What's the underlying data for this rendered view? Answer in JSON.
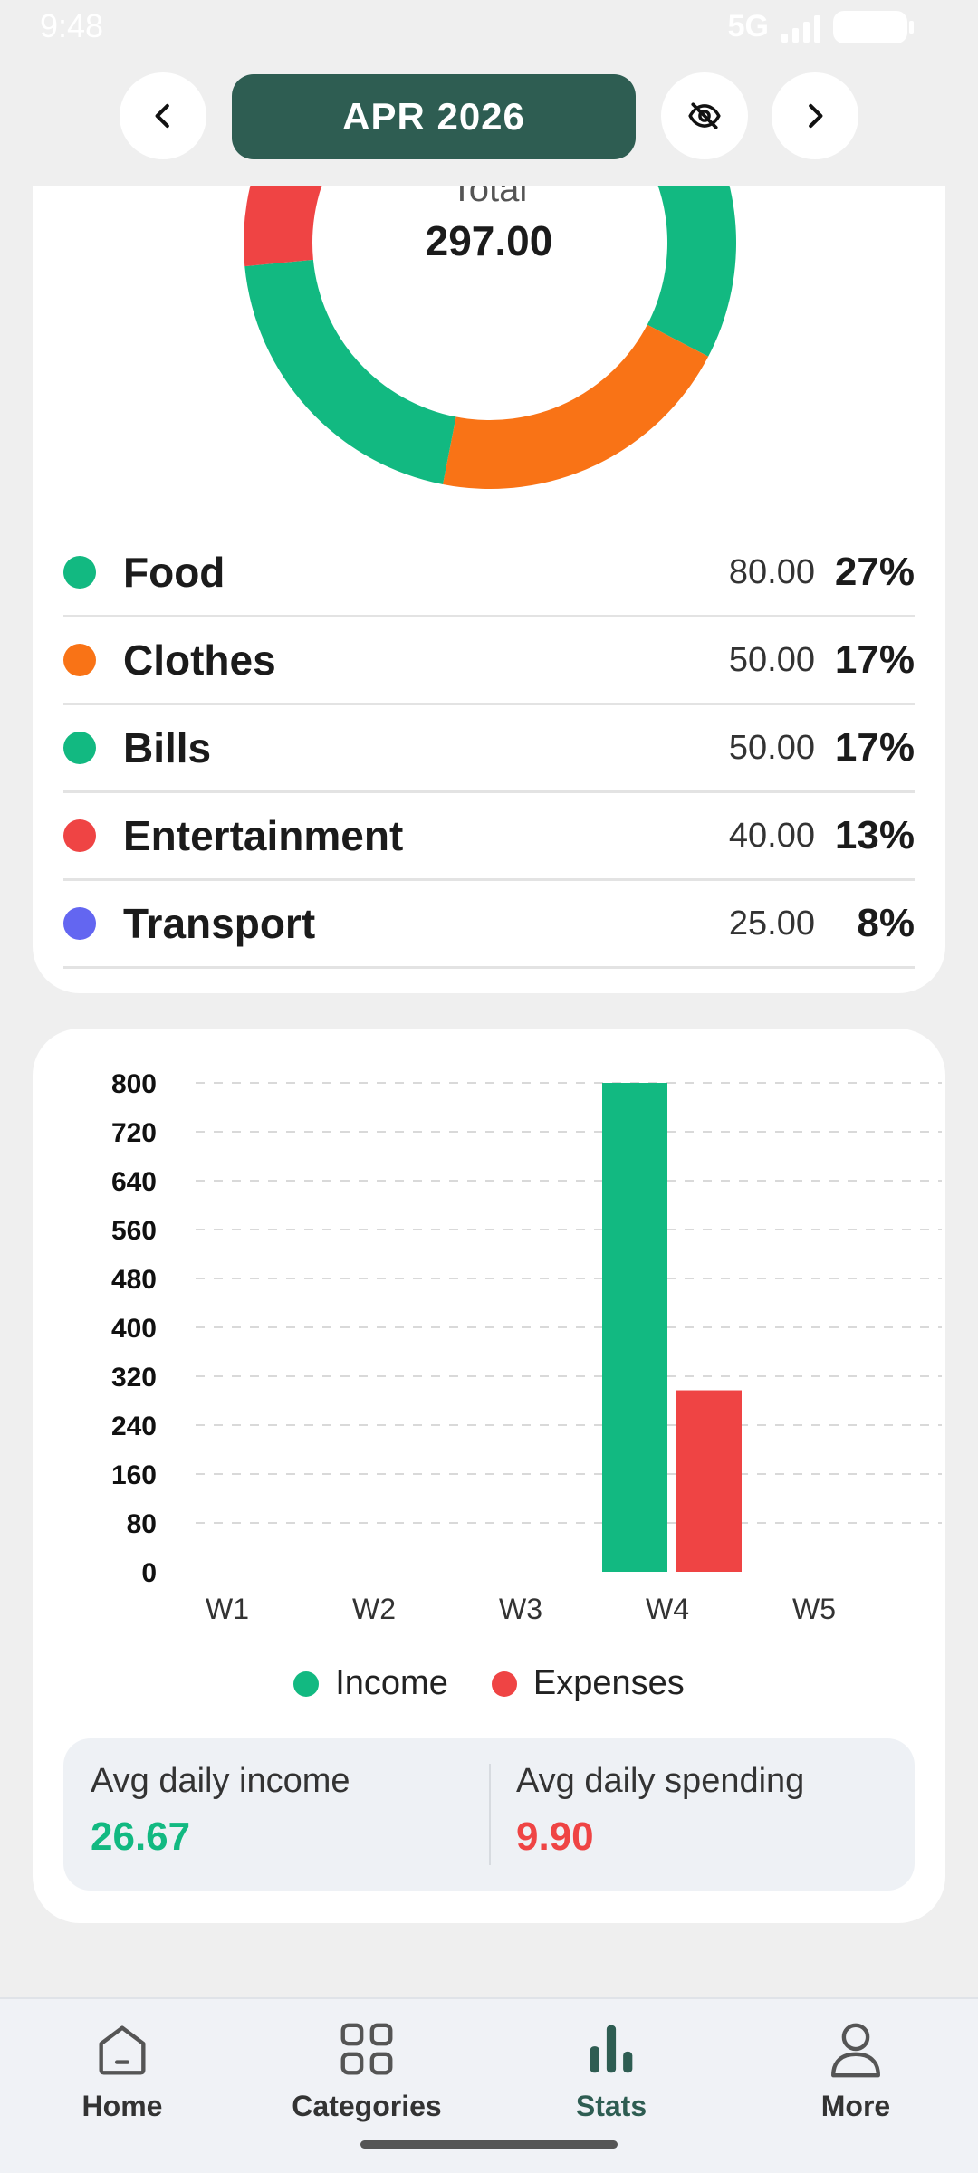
{
  "status_bar": {
    "time": "9:48",
    "network": "5G"
  },
  "header": {
    "month_label": "APR 2026",
    "prev_icon": "chevron-left-icon",
    "next_icon": "chevron-right-icon",
    "visibility_icon": "eye-off-icon"
  },
  "summary": {
    "total_label": "Total",
    "total_value": "297.00",
    "categories": [
      {
        "name": "Food",
        "amount": "80.00",
        "percent": "27%",
        "color": "#12b981",
        "value": 80
      },
      {
        "name": "Clothes",
        "amount": "50.00",
        "percent": "17%",
        "color": "#f97316",
        "value": 50
      },
      {
        "name": "Bills",
        "amount": "50.00",
        "percent": "17%",
        "color": "#12b981",
        "value": 50
      },
      {
        "name": "Entertainment",
        "amount": "40.00",
        "percent": "13%",
        "color": "#ef4444",
        "value": 40
      },
      {
        "name": "Transport",
        "amount": "25.00",
        "percent": "8%",
        "color": "#6366f1",
        "value": 25
      }
    ]
  },
  "chart_data": {
    "type": "bar",
    "categories": [
      "W1",
      "W2",
      "W3",
      "W4",
      "W5"
    ],
    "series": [
      {
        "name": "Income",
        "color": "#12b981",
        "values": [
          0,
          0,
          0,
          800,
          0
        ]
      },
      {
        "name": "Expenses",
        "color": "#ef4444",
        "values": [
          0,
          0,
          0,
          297,
          0
        ]
      }
    ],
    "yticks": [
      "0",
      "80",
      "160",
      "240",
      "320",
      "400",
      "480",
      "560",
      "640",
      "720",
      "800"
    ],
    "ylim": [
      0,
      800
    ],
    "grid": true,
    "legend_position": "bottom"
  },
  "averages": {
    "income_label": "Avg daily income",
    "income_value": "26.67",
    "income_color": "#12b981",
    "spending_label": "Avg daily spending",
    "spending_value": "9.90",
    "spending_color": "#ef4444"
  },
  "nav": {
    "items": [
      {
        "label": "Home",
        "icon": "home-icon"
      },
      {
        "label": "Categories",
        "icon": "grid-icon"
      },
      {
        "label": "Stats",
        "icon": "bar-chart-icon",
        "active": true
      },
      {
        "label": "More",
        "icon": "user-icon"
      }
    ]
  }
}
